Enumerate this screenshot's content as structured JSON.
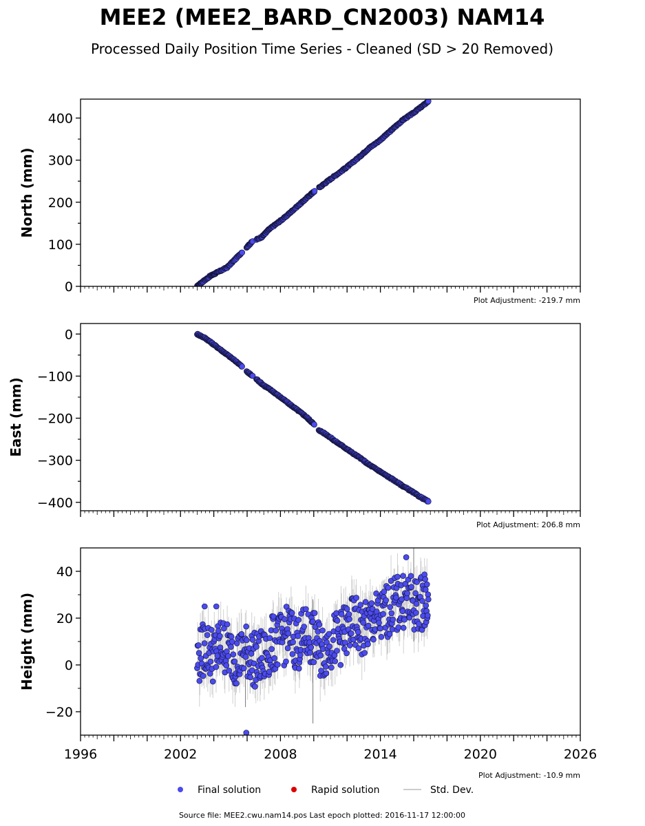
{
  "header": {
    "title": "MEE2 (MEE2_BARD_CN2003) NAM14",
    "subtitle": "Processed Daily Position Time Series - Cleaned (SD > 20 Removed)"
  },
  "legend": {
    "final": "Final solution",
    "rapid": "Rapid solution",
    "std": "Std. Dev."
  },
  "footer": {
    "source": "Source file: MEE2.cwu.nam14.pos  Last epoch plotted: 2016-11-17 12:00:00"
  },
  "colors": {
    "final": "#4b4bef",
    "rapid": "#dd0000",
    "std": "#bbbbbb",
    "edge": "#111133"
  },
  "chart_data": [
    {
      "type": "scatter",
      "ylabel": "North (mm)",
      "adjustment": "Plot Adjustment: -219.7 mm",
      "xlim": [
        1996,
        2026
      ],
      "ylim": [
        0,
        445
      ],
      "yticks": [
        0,
        100,
        200,
        300,
        400
      ],
      "xtick_labels": false,
      "series": [
        {
          "x": [
            2003.0,
            2003.3,
            2003.8,
            2004.2,
            2004.8,
            2005.3,
            2005.9,
            2006.3,
            2006.9,
            2007.3,
            2007.8,
            2008.3,
            2008.8,
            2009.3,
            2009.8,
            2010.1,
            2010.6,
            2011.1,
            2011.7,
            2012.2,
            2012.8,
            2013.3,
            2013.9,
            2014.4,
            2014.9,
            2015.4,
            2015.9,
            2016.4,
            2016.88
          ],
          "y": [
            0,
            10,
            25,
            33,
            45,
            65,
            90,
            106,
            118,
            135,
            150,
            165,
            183,
            200,
            218,
            228,
            243,
            258,
            275,
            290,
            310,
            328,
            345,
            362,
            380,
            397,
            410,
            425,
            440
          ]
        }
      ]
    },
    {
      "type": "scatter",
      "ylabel": "East (mm)",
      "adjustment": "Plot Adjustment: 206.8 mm",
      "xlim": [
        1996,
        2026
      ],
      "ylim": [
        -420,
        25
      ],
      "yticks": [
        0,
        -100,
        -200,
        -300,
        -400
      ],
      "xtick_labels": false,
      "series": [
        {
          "x": [
            2003.0,
            2003.5,
            2004.0,
            2004.5,
            2005.0,
            2005.5,
            2006.0,
            2006.5,
            2007.0,
            2007.5,
            2008.0,
            2008.5,
            2009.0,
            2009.5,
            2009.9,
            2010.3,
            2010.8,
            2011.3,
            2011.8,
            2012.3,
            2012.8,
            2013.3,
            2013.8,
            2014.3,
            2014.8,
            2015.3,
            2015.8,
            2016.3,
            2016.88
          ],
          "y": [
            0,
            -10,
            -25,
            -40,
            -55,
            -70,
            -90,
            -105,
            -122,
            -135,
            -150,
            -165,
            -180,
            -195,
            -210,
            -228,
            -240,
            -255,
            -268,
            -282,
            -295,
            -310,
            -322,
            -335,
            -347,
            -360,
            -372,
            -385,
            -398
          ]
        }
      ]
    },
    {
      "type": "scatter",
      "ylabel": "Height (mm)",
      "adjustment": "Plot Adjustment: -10.9 mm",
      "xlim": [
        1996,
        2026
      ],
      "ylim": [
        -30,
        50
      ],
      "yticks": [
        -20,
        0,
        20,
        40
      ],
      "xticks": [
        1996,
        2002,
        2008,
        2014,
        2020,
        2026
      ],
      "xtick_labels": true,
      "series": [
        {
          "x": [
            2003.0,
            2003.5,
            2004.0,
            2004.5,
            2005.0,
            2005.5,
            2006.0,
            2006.5,
            2007.0,
            2007.5,
            2008.0,
            2008.5,
            2009.0,
            2009.5,
            2010.0,
            2010.5,
            2011.0,
            2011.5,
            2012.0,
            2012.5,
            2013.0,
            2013.5,
            2014.0,
            2014.5,
            2015.0,
            2015.5,
            2016.0,
            2016.5,
            2016.88
          ],
          "y": [
            2,
            8,
            4,
            9,
            5,
            3,
            6,
            2,
            3,
            9,
            10,
            14,
            9,
            13,
            11,
            5,
            10,
            11,
            15,
            18,
            14,
            19,
            20,
            24,
            26,
            28,
            25,
            27,
            28
          ]
        }
      ],
      "outliers": [
        {
          "x": 2003.45,
          "y": 25
        },
        {
          "x": 2004.15,
          "y": 25
        },
        {
          "x": 2005.95,
          "y": -29
        },
        {
          "x": 2015.55,
          "y": 46
        }
      ]
    }
  ]
}
